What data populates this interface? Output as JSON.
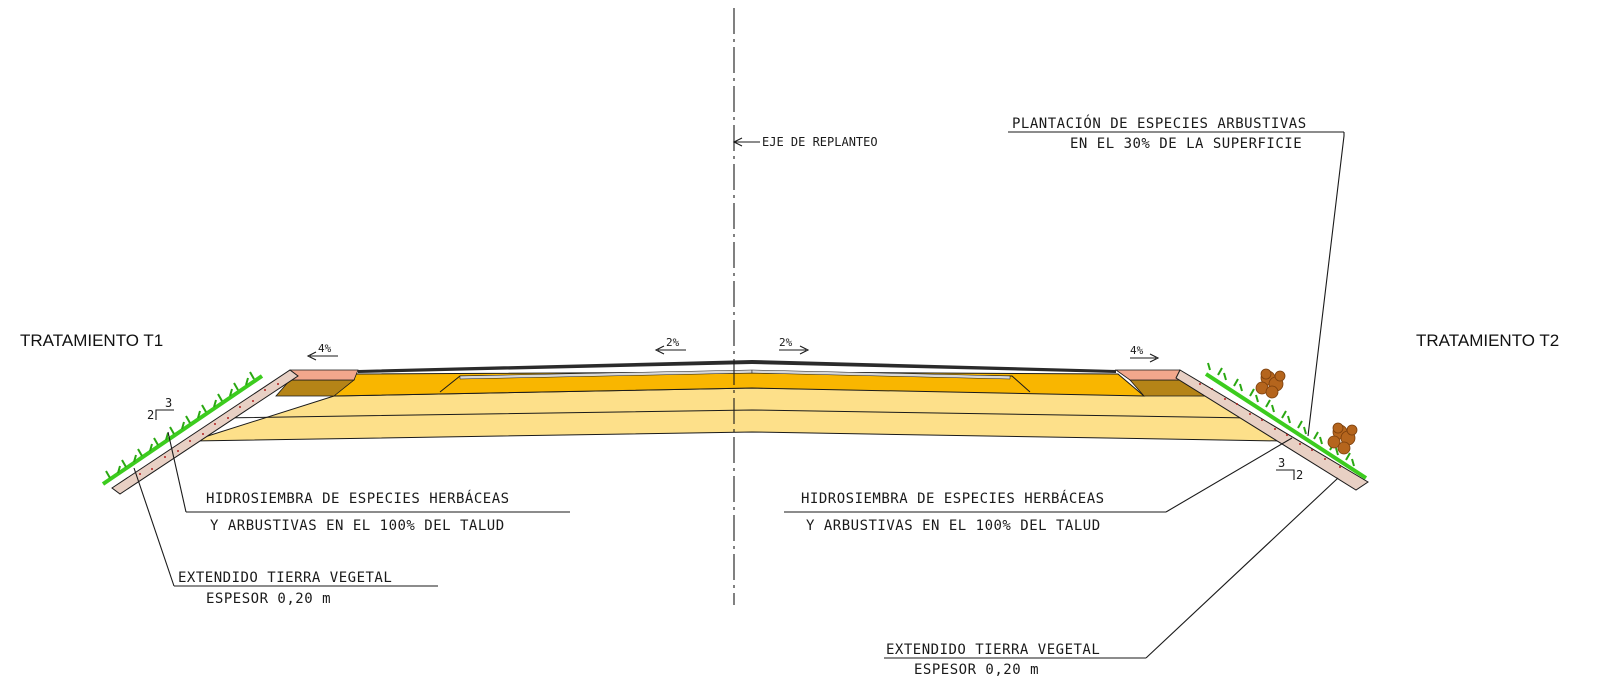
{
  "treatments": {
    "left_title": "TRATAMIENTO T1",
    "right_title": "TRATAMIENTO T2"
  },
  "axis": {
    "label": "EJE DE REPLANTEO"
  },
  "slopes": {
    "left_shoulder": "4%",
    "left_lane": "2%",
    "right_lane": "2%",
    "right_shoulder": "4%",
    "left_talud_v": "3",
    "left_talud_h": "2",
    "right_talud_v": "3",
    "right_talud_h": "2"
  },
  "labels": {
    "plantacion_line1": "PLANTACIÓN DE ESPECIES ARBUSTIVAS",
    "plantacion_line2": "EN EL 30% DE LA SUPERFICIE",
    "hidro_left_line1": "HIDROSIEMBRA DE ESPECIES HERBÁCEAS",
    "hidro_left_line2": "Y ARBUSTIVAS EN EL 100% DEL TALUD",
    "hidro_right_line1": "HIDROSIEMBRA DE ESPECIES HERBÁCEAS",
    "hidro_right_line2": "Y ARBUSTIVAS EN EL 100% DEL TALUD",
    "tierra_left_line1": "EXTENDIDO TIERRA VEGETAL",
    "tierra_left_line2": "ESPESOR 0,20 m",
    "tierra_right_line1": "EXTENDIDO TIERRA VEGETAL",
    "tierra_right_line2": "ESPESOR 0,20 m"
  },
  "colors": {
    "asphalt": "#2b2b2b",
    "base_orange": "#f9b600",
    "subbase_light": "#fde08a",
    "shoulder_salmon": "#f2a78c",
    "shoulder_brown": "#b58417",
    "topsoil": "#d9b7a6",
    "grass": "#3ccc1e",
    "shrub": "#b5651d"
  }
}
